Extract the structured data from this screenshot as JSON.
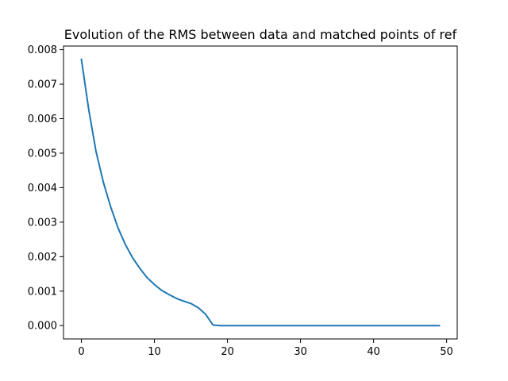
{
  "chart_data": {
    "type": "line",
    "title": "Evolution of the RMS between data and matched points of ref",
    "xlabel": "",
    "ylabel": "",
    "xlim": [
      -2.45,
      51.45
    ],
    "ylim": [
      -0.000386,
      0.008106
    ],
    "x_ticks": [
      0,
      10,
      20,
      30,
      40,
      50
    ],
    "x_tick_labels": [
      "0",
      "10",
      "20",
      "30",
      "40",
      "50"
    ],
    "y_ticks": [
      0.0,
      0.001,
      0.002,
      0.003,
      0.004,
      0.005,
      0.006,
      0.007,
      0.008
    ],
    "y_tick_labels": [
      "0.000",
      "0.001",
      "0.002",
      "0.003",
      "0.004",
      "0.005",
      "0.006",
      "0.007",
      "0.008"
    ],
    "grid": false,
    "legend": "none",
    "series": [
      {
        "color": "#1f77b4",
        "x": [
          0,
          1,
          2,
          3,
          4,
          5,
          6,
          7,
          8,
          9,
          10,
          11,
          12,
          13,
          14,
          15,
          16,
          17,
          18,
          19,
          20,
          21,
          22,
          23,
          24,
          25,
          26,
          27,
          28,
          29,
          30,
          31,
          32,
          33,
          34,
          35,
          36,
          37,
          38,
          39,
          40,
          41,
          42,
          43,
          44,
          45,
          46,
          47,
          48,
          49
        ],
        "y": [
          0.00772,
          0.00627,
          0.00505,
          0.00416,
          0.00345,
          0.00284,
          0.00236,
          0.00197,
          0.00166,
          0.00139,
          0.00119,
          0.00102,
          0.0009,
          0.00079,
          0.00071,
          0.00064,
          0.00052,
          0.00033,
          2e-05,
          0.0,
          0.0,
          0.0,
          0.0,
          0.0,
          0.0,
          0.0,
          0.0,
          0.0,
          0.0,
          0.0,
          0.0,
          0.0,
          0.0,
          0.0,
          0.0,
          0.0,
          0.0,
          0.0,
          0.0,
          0.0,
          0.0,
          0.0,
          0.0,
          0.0,
          0.0,
          0.0,
          0.0,
          0.0,
          0.0,
          0.0
        ]
      }
    ]
  }
}
